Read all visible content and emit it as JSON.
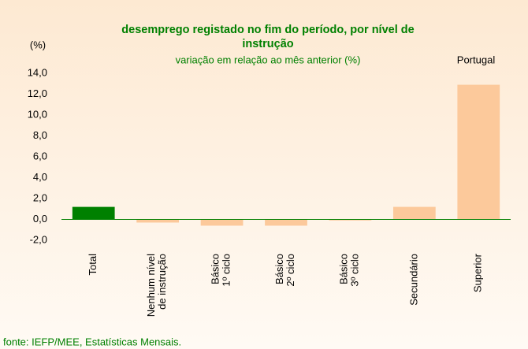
{
  "chart_data": {
    "type": "bar",
    "title": "desemprego registado no fim do período,  por nível de\ninstrução",
    "subtitle": "variação em relação ao mês anterior (%)",
    "y_label": "(%)",
    "annotation": "Portugal",
    "source": "fonte: IEFP/MEE, Estatísticas Mensais.",
    "categories": [
      "Total",
      "Nenhum nível\nde instrução",
      "Básico\n1º ciclo",
      "Básico\n2º ciclo",
      "Básico\n3º ciclo",
      "Secundário",
      "Superior"
    ],
    "values": [
      1.2,
      -0.3,
      -0.6,
      -0.6,
      -0.1,
      1.2,
      12.9
    ],
    "colors": [
      "#008000",
      "#fcc99b",
      "#fcc99b",
      "#fcc99b",
      "#fcc99b",
      "#fcc99b",
      "#fcc99b"
    ],
    "ylim": [
      -2,
      14
    ],
    "yticks": [
      {
        "value": -2,
        "label": "-2,0"
      },
      {
        "value": 0,
        "label": "0,0"
      },
      {
        "value": 2,
        "label": "2,0"
      },
      {
        "value": 4,
        "label": "4,0"
      },
      {
        "value": 6,
        "label": "6,0"
      },
      {
        "value": 8,
        "label": "8,0"
      },
      {
        "value": 10,
        "label": "10,0"
      },
      {
        "value": 12,
        "label": "12,0"
      },
      {
        "value": 14,
        "label": "14,0"
      }
    ],
    "grid": false
  }
}
